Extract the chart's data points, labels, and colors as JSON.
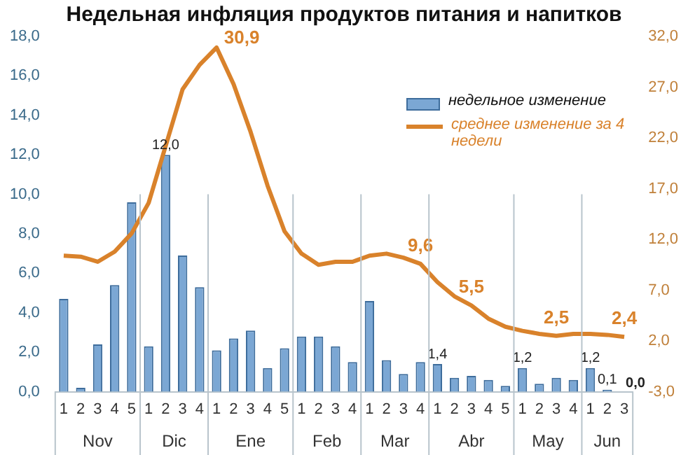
{
  "chart_data": {
    "type": "bar",
    "title": "Недельная инфляция продуктов питания и напитков",
    "categories": [
      "1",
      "2",
      "3",
      "4",
      "5",
      "1",
      "2",
      "3",
      "4",
      "1",
      "2",
      "3",
      "4",
      "5",
      "1",
      "2",
      "3",
      "4",
      "1",
      "2",
      "3",
      "4",
      "1",
      "2",
      "3",
      "4",
      "5",
      "1",
      "2",
      "3",
      "4",
      "1",
      "2",
      "3"
    ],
    "series": [
      {
        "name": "недельное изменение",
        "color": "#7ba7d4",
        "values": [
          4.7,
          0.2,
          2.4,
          5.4,
          9.6,
          2.3,
          12.0,
          6.9,
          5.3,
          2.1,
          2.7,
          3.1,
          1.2,
          2.2,
          2.8,
          2.8,
          2.3,
          1.5,
          4.6,
          1.6,
          0.9,
          1.5,
          1.4,
          0.7,
          0.8,
          0.6,
          0.3,
          1.2,
          0.4,
          0.7,
          0.6,
          1.2,
          0.1,
          0.0
        ],
        "value_labels": [
          null,
          null,
          null,
          null,
          null,
          null,
          "12,0",
          null,
          null,
          null,
          null,
          null,
          null,
          null,
          null,
          null,
          null,
          null,
          null,
          null,
          null,
          null,
          "1,4",
          null,
          null,
          null,
          null,
          "1,2",
          null,
          null,
          null,
          "1,2",
          "0,1",
          "0,0"
        ]
      },
      {
        "name": "среднее изменение за 4 недели",
        "type": "line",
        "axis": "y2",
        "color": "#d9822b",
        "values": [
          10.4,
          10.3,
          9.8,
          10.8,
          12.6,
          15.6,
          21.2,
          26.8,
          29.2,
          30.9,
          27.3,
          22.6,
          17.3,
          12.8,
          10.6,
          9.5,
          9.8,
          9.8,
          10.4,
          10.6,
          10.2,
          9.6,
          7.8,
          6.4,
          5.5,
          4.2,
          3.4,
          3.0,
          2.7,
          2.5,
          2.7,
          2.7,
          2.6,
          2.4
        ],
        "value_labels": [
          null,
          null,
          null,
          null,
          null,
          null,
          null,
          null,
          null,
          "30,9",
          null,
          null,
          null,
          null,
          null,
          null,
          null,
          null,
          null,
          null,
          null,
          "9,6",
          null,
          null,
          "5,5",
          null,
          null,
          null,
          null,
          "2,5",
          null,
          null,
          null,
          "2,4"
        ]
      }
    ],
    "ylim": [
      0,
      18
    ],
    "yticks": [
      {
        "value": 0,
        "label": "0,0"
      },
      {
        "value": 2,
        "label": "2,0"
      },
      {
        "value": 4,
        "label": "4,0"
      },
      {
        "value": 6,
        "label": "6,0"
      },
      {
        "value": 8,
        "label": "8,0"
      },
      {
        "value": 10,
        "label": "10,0"
      },
      {
        "value": 12,
        "label": "12,0"
      },
      {
        "value": 14,
        "label": "14,0"
      },
      {
        "value": 16,
        "label": "16,0"
      },
      {
        "value": 18,
        "label": "18,0"
      }
    ],
    "y2lim": [
      -3,
      32
    ],
    "y2ticks": [
      {
        "value": -3,
        "label": "-3,0"
      },
      {
        "value": 2,
        "label": "2,0"
      },
      {
        "value": 7,
        "label": "7,0"
      },
      {
        "value": 12,
        "label": "12,0"
      },
      {
        "value": 17,
        "label": "17,0"
      },
      {
        "value": 22,
        "label": "22,0"
      },
      {
        "value": 27,
        "label": "27,0"
      },
      {
        "value": 32,
        "label": "32,0"
      }
    ],
    "annotations": [
      "Nov",
      "Dic",
      "Ene",
      "Feb",
      "Mar",
      "Abr",
      "May",
      "Jun"
    ],
    "legend": "top right",
    "grid": false,
    "marker": "none",
    "line_style": "solid"
  }
}
